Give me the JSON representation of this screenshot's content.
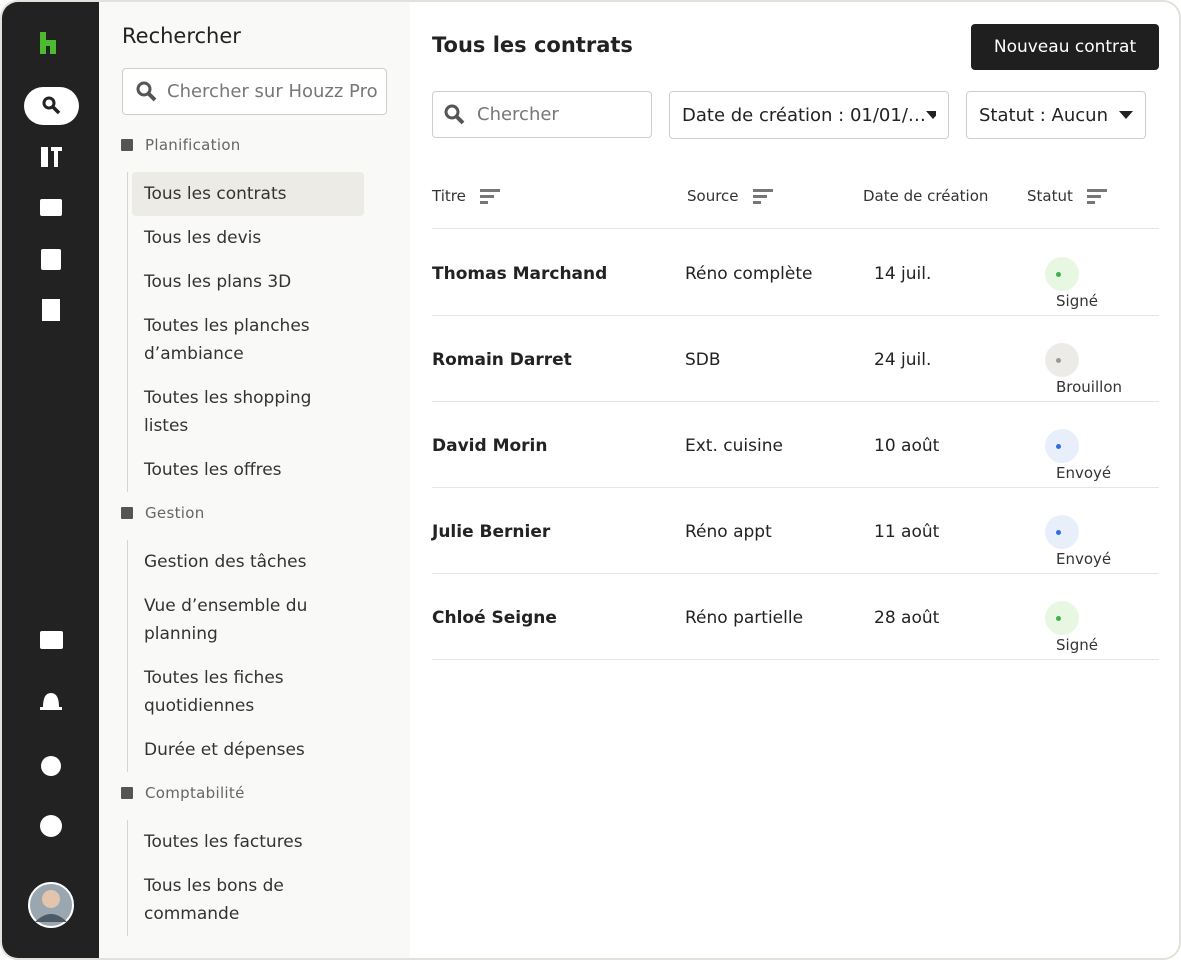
{
  "sidebar": {
    "title": "Rechercher",
    "search_placeholder": "Chercher sur Houzz Pro",
    "sections": [
      {
        "label": "Planification",
        "items": [
          "Tous les contrats",
          "Tous les devis",
          "Tous les plans 3D",
          "Toutes les planches d’ambiance",
          "Toutes les shopping listes",
          "Toutes les offres"
        ]
      },
      {
        "label": "Gestion",
        "items": [
          "Gestion des tâches",
          "Vue d’ensemble du planning",
          "Toutes les fiches quotidiennes",
          "Durée et dépenses"
        ]
      },
      {
        "label": "Comptabilité",
        "items": [
          "Toutes les factures",
          "Tous les bons de commande"
        ]
      }
    ]
  },
  "main": {
    "title": "Tous les contrats",
    "new_button": "Nouveau contrat",
    "search_placeholder": "Chercher",
    "filters": [
      "Date de création : 01/01/…",
      "Statut : Aucun"
    ],
    "table": {
      "columns": [
        "Titre",
        "Source",
        "Date de création",
        "Statut"
      ],
      "rows": [
        {
          "cells": [
            "Thomas Marchand",
            "Réno complète",
            "14 juil.",
            "Signé"
          ],
          "status_color": "#3bb54a",
          "status_bg": "#e8f7e2"
        },
        {
          "cells": [
            "Romain Darret",
            "SDB",
            "24 juil.",
            "Brouillon"
          ],
          "status_color": "#9a9a96",
          "status_bg": "#ecebe7"
        },
        {
          "cells": [
            "David Morin",
            "Ext. cuisine",
            "10 août",
            "Envoyé"
          ],
          "status_color": "#2f6fe0",
          "status_bg": "#e8effb"
        },
        {
          "cells": [
            "Julie Bernier",
            "Réno appt",
            "11 août",
            "Envoyé"
          ],
          "status_color": "#2f6fe0",
          "status_bg": "#e8effb"
        },
        {
          "cells": [
            "Chloé Seigne",
            "Réno partielle",
            "28 août",
            "Signé"
          ],
          "status_color": "#3bb54a",
          "status_bg": "#e8f7e2"
        }
      ]
    }
  }
}
